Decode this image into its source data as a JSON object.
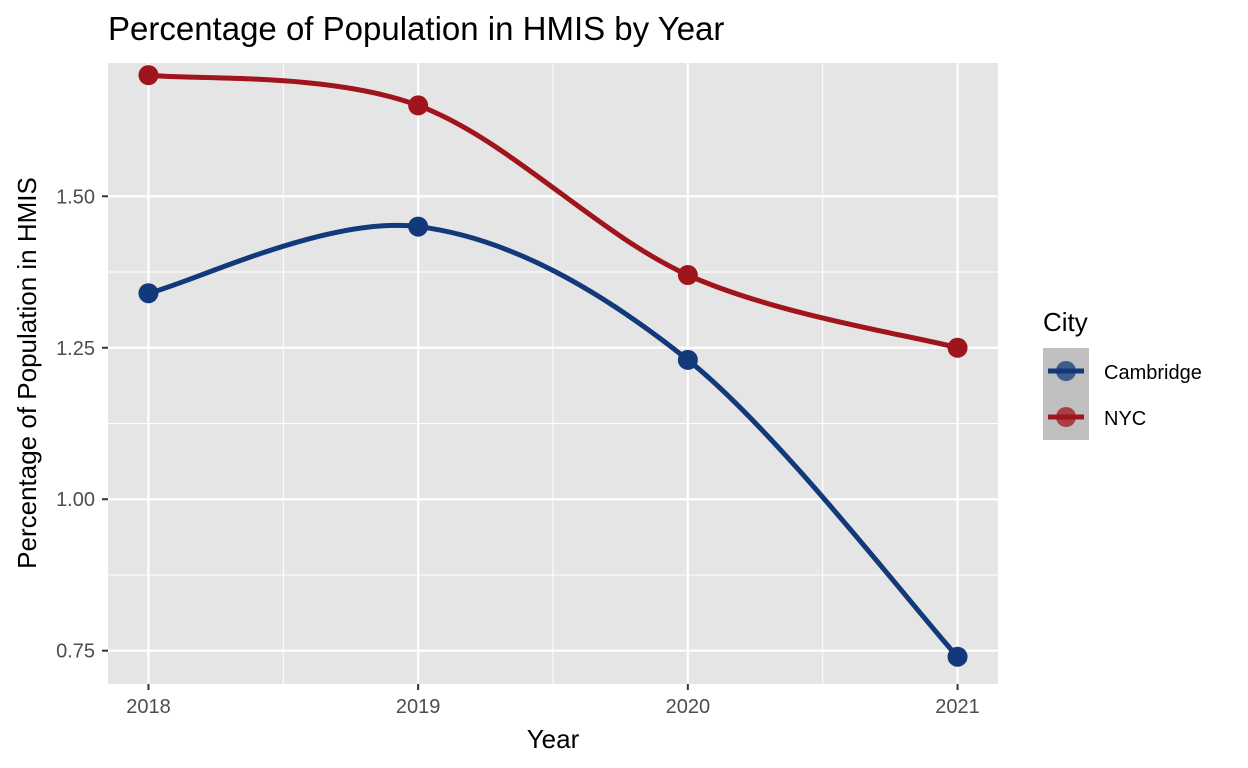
{
  "chart_data": {
    "type": "line",
    "title": "Percentage of Population in HMIS by Year",
    "xlabel": "Year",
    "ylabel": "Percentage of Population in HMIS",
    "x": [
      2018,
      2019,
      2020,
      2021
    ],
    "x_tick_labels": [
      "2018",
      "2019",
      "2020",
      "2021"
    ],
    "xlim": [
      2017.85,
      2021.15
    ],
    "ylim": [
      0.695,
      1.72
    ],
    "y_ticks": [
      0.75,
      1.0,
      1.25,
      1.5
    ],
    "y_tick_labels": [
      "0.75",
      "1.00",
      "1.25",
      "1.50"
    ],
    "grid": true,
    "smoothed": true,
    "legend": {
      "title": "City",
      "position": "right"
    },
    "series": [
      {
        "name": "Cambridge",
        "color": "#12397a",
        "values": [
          1.34,
          1.45,
          1.23,
          0.74
        ]
      },
      {
        "name": "NYC",
        "color": "#a0141c",
        "values": [
          1.7,
          1.65,
          1.37,
          1.25
        ]
      }
    ]
  },
  "style": {
    "panel_background": "#e5e5e5",
    "grid_color": "#ffffff",
    "legend_key_background": "#bfbfbf"
  }
}
